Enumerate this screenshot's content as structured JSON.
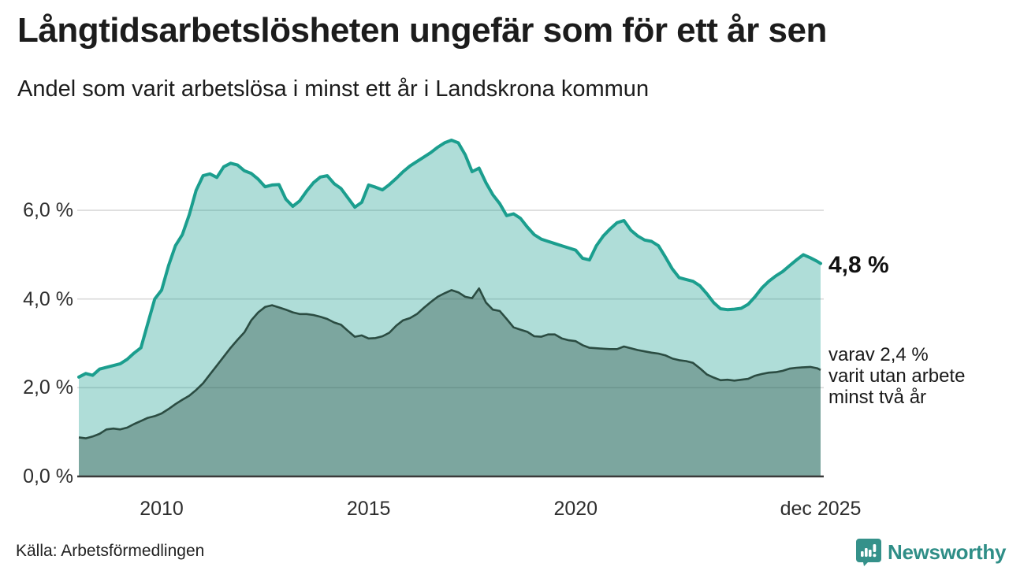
{
  "header": {
    "title": "Långtidsarbetslösheten ungefär som för ett år sen",
    "subtitle": "Andel som varit arbetslösa i minst ett år i Landskrona kommun"
  },
  "annotations": {
    "latest_total": "4,8 %",
    "note_lines": [
      "varav 2,4 %",
      "varit utan arbete",
      "minst två år"
    ]
  },
  "source": "Källa: Arbetsförmedlingen",
  "branding": {
    "name": "Newsworthy",
    "icon": "newsworthy-chart-bubble-icon",
    "color": "#2f8e87"
  },
  "colors": {
    "total_line": "#1b9e8e",
    "total_fill": "rgba(27,158,142,0.35)",
    "two_year_line": "#2b4c42",
    "two_year_fill": "rgba(43,76,66,0.38)",
    "gridline": "#d9d9d9",
    "axis": "#3a3a3a"
  },
  "chart_data": {
    "type": "area",
    "title": "Långtidsarbetslösheten ungefär som för ett år sen",
    "subtitle": "Andel som varit arbetslösa i minst ett år i Landskrona kommun",
    "unit": "%",
    "x_start": "jan 2008",
    "x_end": "dec 2025",
    "total_months": 215,
    "x_step_months": 2,
    "ylim": [
      0,
      7.9
    ],
    "grid": true,
    "legend_position": "none",
    "y_ticks": [
      {
        "label": "0,0 %",
        "value": 0
      },
      {
        "label": "2,0 %",
        "value": 2
      },
      {
        "label": "4,0 %",
        "value": 4
      },
      {
        "label": "6,0 %",
        "value": 6
      }
    ],
    "x_ticks": [
      {
        "label": "2010",
        "month": 24
      },
      {
        "label": "2015",
        "month": 84
      },
      {
        "label": "2020",
        "month": 144
      },
      {
        "label": "dec 2025",
        "month": 215
      }
    ],
    "series": [
      {
        "name": "Andel arbetslösa minst ett år",
        "latest_value": 4.8,
        "values": [
          2.24,
          2.32,
          2.28,
          2.42,
          2.46,
          2.5,
          2.54,
          2.64,
          2.78,
          2.9,
          3.45,
          4.0,
          4.2,
          4.75,
          5.2,
          5.45,
          5.9,
          6.45,
          6.78,
          6.82,
          6.74,
          6.98,
          7.06,
          7.02,
          6.89,
          6.83,
          6.7,
          6.53,
          6.57,
          6.58,
          6.25,
          6.09,
          6.21,
          6.43,
          6.62,
          6.75,
          6.78,
          6.6,
          6.49,
          6.28,
          6.07,
          6.18,
          6.57,
          6.52,
          6.46,
          6.58,
          6.72,
          6.87,
          7.0,
          7.1,
          7.2,
          7.3,
          7.42,
          7.52,
          7.58,
          7.52,
          7.25,
          6.87,
          6.95,
          6.62,
          6.35,
          6.15,
          5.88,
          5.92,
          5.82,
          5.62,
          5.45,
          5.35,
          5.3,
          5.25,
          5.2,
          5.15,
          5.1,
          4.92,
          4.88,
          5.2,
          5.42,
          5.58,
          5.72,
          5.77,
          5.55,
          5.42,
          5.33,
          5.3,
          5.2,
          4.95,
          4.68,
          4.48,
          4.44,
          4.4,
          4.3,
          4.12,
          3.92,
          3.78,
          3.76,
          3.77,
          3.79,
          3.88,
          4.05,
          4.25,
          4.4,
          4.52,
          4.62,
          4.75,
          4.88,
          5.0,
          4.93,
          4.85,
          4.8
        ]
      },
      {
        "name": "varav utan arbete minst två år",
        "latest_value": 2.4,
        "values": [
          0.88,
          0.86,
          0.9,
          0.96,
          1.06,
          1.08,
          1.06,
          1.1,
          1.18,
          1.25,
          1.32,
          1.36,
          1.42,
          1.52,
          1.63,
          1.73,
          1.82,
          1.95,
          2.1,
          2.3,
          2.5,
          2.7,
          2.9,
          3.08,
          3.25,
          3.52,
          3.7,
          3.82,
          3.86,
          3.81,
          3.76,
          3.7,
          3.66,
          3.66,
          3.64,
          3.6,
          3.55,
          3.47,
          3.42,
          3.28,
          3.15,
          3.18,
          3.11,
          3.12,
          3.16,
          3.24,
          3.4,
          3.52,
          3.57,
          3.66,
          3.8,
          3.93,
          4.05,
          4.13,
          4.2,
          4.15,
          4.05,
          4.02,
          4.24,
          3.92,
          3.76,
          3.73,
          3.55,
          3.36,
          3.31,
          3.26,
          3.16,
          3.15,
          3.2,
          3.2,
          3.11,
          3.07,
          3.05,
          2.96,
          2.9,
          2.89,
          2.88,
          2.87,
          2.87,
          2.93,
          2.89,
          2.85,
          2.82,
          2.79,
          2.77,
          2.73,
          2.66,
          2.62,
          2.6,
          2.56,
          2.44,
          2.3,
          2.23,
          2.17,
          2.18,
          2.16,
          2.18,
          2.2,
          2.27,
          2.31,
          2.34,
          2.35,
          2.38,
          2.43,
          2.45,
          2.46,
          2.47,
          2.44,
          2.4
        ]
      }
    ]
  }
}
